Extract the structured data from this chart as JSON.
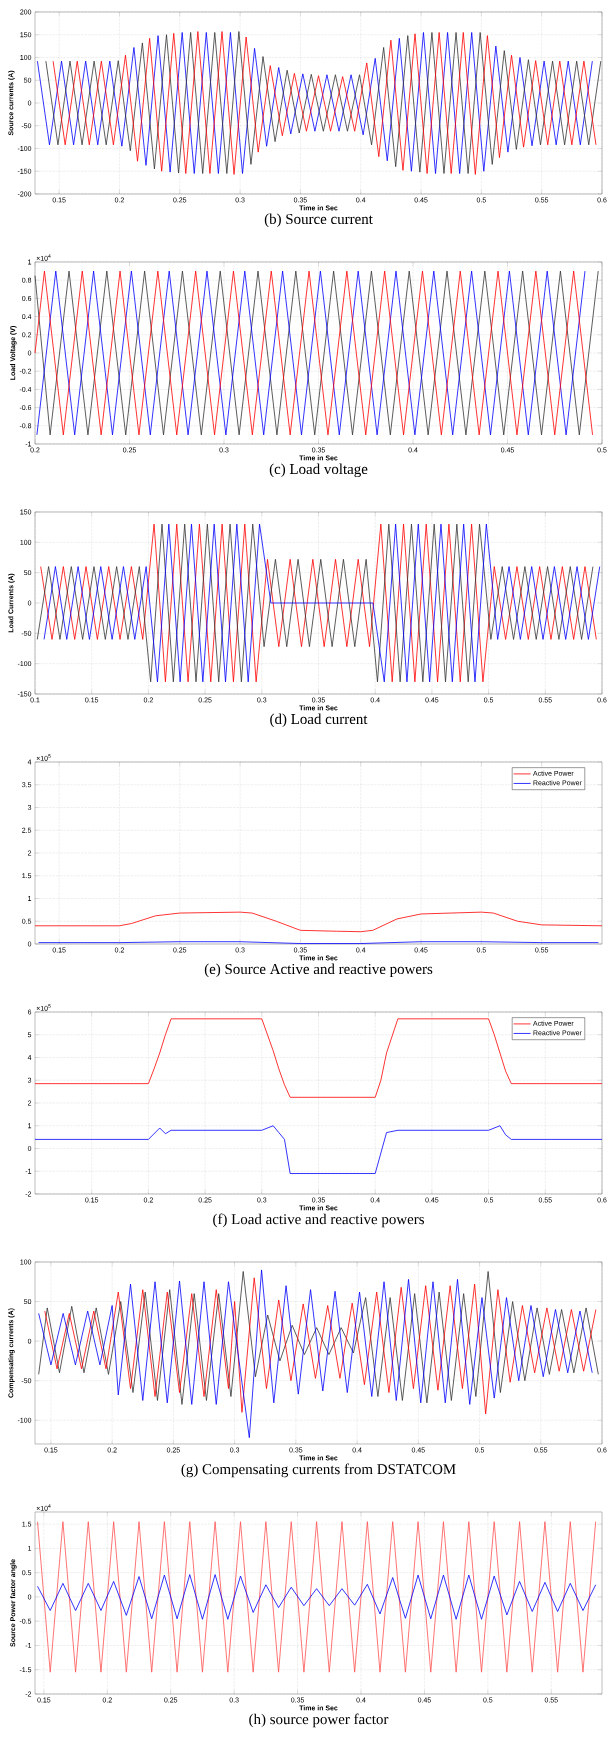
{
  "chart_data": [
    {
      "type": "line",
      "title": "(b) Source current",
      "xlabel": "Time in Sec",
      "ylabel": "Source currents (A)",
      "xlim": [
        0.13,
        0.6
      ],
      "ylim": [
        -200,
        200
      ],
      "xticks": [
        0.15,
        0.2,
        0.25,
        0.3,
        0.35,
        0.4,
        0.45,
        0.5,
        0.55,
        0.6
      ],
      "yticks": [
        -200,
        -150,
        -100,
        -50,
        0,
        50,
        100,
        150,
        200
      ],
      "grid": true,
      "series": [
        {
          "color": "#0000ff",
          "x": [
            0.132,
            0.142,
            0.152,
            0.162,
            0.172,
            0.182,
            0.192,
            0.202,
            0.212,
            0.222,
            0.232,
            0.242,
            0.252,
            0.262,
            0.272,
            0.282,
            0.292,
            0.302,
            0.312,
            0.322,
            0.332,
            0.342,
            0.352,
            0.362,
            0.372,
            0.382,
            0.392,
            0.402,
            0.412,
            0.422,
            0.432,
            0.442,
            0.452,
            0.462,
            0.472,
            0.482,
            0.492,
            0.502,
            0.512,
            0.522,
            0.532,
            0.542,
            0.552,
            0.562,
            0.572,
            0.582,
            0.592
          ],
          "values": [
            92,
            -92,
            92,
            -92,
            92,
            -92,
            92,
            -95,
            122,
            -137,
            148,
            -152,
            155,
            -155,
            155,
            -155,
            155,
            -155,
            120,
            -95,
            78,
            -68,
            64,
            -62,
            62,
            -62,
            62,
            -70,
            98,
            -127,
            142,
            -150,
            155,
            -155,
            155,
            -155,
            155,
            -150,
            125,
            -108,
            100,
            -94,
            92,
            -92,
            92,
            -92,
            92
          ]
        },
        {
          "color": "#333333",
          "x": [
            0.139,
            0.149,
            0.159,
            0.169,
            0.179,
            0.189,
            0.199,
            0.209,
            0.219,
            0.229,
            0.239,
            0.249,
            0.259,
            0.269,
            0.279,
            0.289,
            0.299,
            0.309,
            0.319,
            0.329,
            0.339,
            0.349,
            0.359,
            0.369,
            0.379,
            0.389,
            0.399,
            0.409,
            0.419,
            0.429,
            0.439,
            0.449,
            0.459,
            0.469,
            0.479,
            0.489,
            0.499,
            0.509,
            0.519,
            0.529,
            0.539,
            0.549,
            0.559,
            0.569,
            0.579,
            0.589,
            0.599
          ],
          "values": [
            92,
            -92,
            92,
            -92,
            92,
            -92,
            93,
            -105,
            132,
            -145,
            150,
            -154,
            155,
            -155,
            155,
            -155,
            157,
            -135,
            102,
            -85,
            72,
            -66,
            63,
            -62,
            62,
            -62,
            62,
            -92,
            122,
            -140,
            148,
            -152,
            155,
            -155,
            155,
            -155,
            155,
            -135,
            115,
            -102,
            95,
            -92,
            92,
            -92,
            92,
            -92,
            92
          ]
        },
        {
          "color": "#ff0000",
          "x": [
            0.145,
            0.155,
            0.165,
            0.175,
            0.185,
            0.195,
            0.205,
            0.215,
            0.225,
            0.235,
            0.245,
            0.255,
            0.265,
            0.275,
            0.285,
            0.295,
            0.305,
            0.315,
            0.325,
            0.335,
            0.345,
            0.355,
            0.365,
            0.375,
            0.385,
            0.395,
            0.405,
            0.415,
            0.425,
            0.435,
            0.445,
            0.455,
            0.465,
            0.475,
            0.485,
            0.495,
            0.505,
            0.515,
            0.525,
            0.535,
            0.545,
            0.555,
            0.565,
            0.575,
            0.585,
            0.595
          ],
          "values": [
            92,
            -92,
            92,
            -92,
            92,
            -92,
            105,
            -128,
            142,
            -150,
            153,
            -155,
            157,
            -155,
            157,
            -157,
            145,
            -108,
            82,
            -72,
            65,
            -62,
            60,
            -62,
            58,
            -62,
            88,
            -118,
            138,
            -148,
            152,
            -155,
            155,
            -155,
            155,
            -157,
            148,
            -120,
            105,
            -97,
            93,
            -92,
            92,
            -92,
            92,
            -92
          ]
        }
      ]
    },
    {
      "type": "line",
      "title": "(c) Load voltage",
      "xlabel": "Time in Sec",
      "ylabel": "Load Voltage (V)",
      "annotations": [
        "×10$^{4}$"
      ],
      "xlim": [
        0.2,
        0.5
      ],
      "ylim": [
        -1,
        1
      ],
      "xticks": [
        0.2,
        0.25,
        0.3,
        0.35,
        0.4,
        0.45,
        0.5
      ],
      "yticks": [
        -1,
        -0.8,
        -0.6,
        -0.4,
        -0.2,
        0,
        0.2,
        0.4,
        0.6,
        0.8,
        1
      ],
      "grid": true,
      "series": [
        {
          "color": "#333333",
          "x": [
            0.2,
            0.208,
            0.218,
            0.228,
            0.238,
            0.248,
            0.258,
            0.268,
            0.278,
            0.288,
            0.298,
            0.308,
            0.318,
            0.328,
            0.338,
            0.348,
            0.358,
            0.368,
            0.378,
            0.388,
            0.398,
            0.408,
            0.418,
            0.428,
            0.438,
            0.448,
            0.458,
            0.468,
            0.478,
            0.488,
            0.498
          ],
          "values": [
            0.85,
            -0.9,
            0.9,
            -0.9,
            0.9,
            -0.9,
            0.9,
            -0.9,
            0.9,
            -0.9,
            0.9,
            -0.9,
            0.9,
            -0.9,
            0.9,
            -0.9,
            0.9,
            -0.9,
            0.9,
            -0.9,
            0.9,
            -0.9,
            0.9,
            -0.9,
            0.9,
            -0.9,
            0.9,
            -0.9,
            0.9,
            -0.9,
            0.9
          ]
        },
        {
          "color": "#0000ff",
          "x": [
            0.201,
            0.211,
            0.221,
            0.231,
            0.241,
            0.251,
            0.261,
            0.271,
            0.281,
            0.291,
            0.301,
            0.311,
            0.321,
            0.331,
            0.341,
            0.351,
            0.361,
            0.371,
            0.381,
            0.391,
            0.401,
            0.411,
            0.421,
            0.431,
            0.441,
            0.451,
            0.461,
            0.471,
            0.481,
            0.491
          ],
          "values": [
            -0.9,
            0.9,
            -0.9,
            0.9,
            -0.9,
            0.9,
            -0.9,
            0.9,
            -0.9,
            0.9,
            -0.9,
            0.9,
            -0.9,
            0.9,
            -0.9,
            0.9,
            -0.9,
            0.9,
            -0.9,
            0.9,
            -0.9,
            0.9,
            -0.9,
            0.9,
            -0.9,
            0.9,
            -0.9,
            0.9,
            -0.9,
            0.9
          ]
        },
        {
          "color": "#ff0000",
          "x": [
            0.2,
            0.205,
            0.215,
            0.225,
            0.235,
            0.245,
            0.255,
            0.265,
            0.275,
            0.285,
            0.295,
            0.305,
            0.315,
            0.325,
            0.335,
            0.345,
            0.355,
            0.365,
            0.375,
            0.385,
            0.395,
            0.405,
            0.415,
            0.425,
            0.435,
            0.445,
            0.455,
            0.465,
            0.475,
            0.485,
            0.495
          ],
          "values": [
            0,
            0.9,
            -0.9,
            0.9,
            -0.9,
            0.9,
            -0.9,
            0.9,
            -0.9,
            0.9,
            -0.9,
            0.9,
            -0.9,
            0.9,
            -0.9,
            0.9,
            -0.9,
            0.9,
            -0.9,
            0.9,
            -0.9,
            0.9,
            -0.9,
            0.9,
            -0.9,
            0.9,
            -0.9,
            0.9,
            -0.9,
            0.9,
            -0.9
          ]
        }
      ]
    },
    {
      "type": "line",
      "title": "(d) Load current",
      "xlabel": "Time in Sec",
      "ylabel": "Load Currents (A)",
      "xlim": [
        0.1,
        0.6
      ],
      "ylim": [
        -150,
        150
      ],
      "xticks": [
        0.1,
        0.15,
        0.2,
        0.25,
        0.3,
        0.35,
        0.4,
        0.45,
        0.5,
        0.55,
        0.6
      ],
      "yticks": [
        -150,
        -100,
        -50,
        0,
        50,
        100,
        150
      ],
      "grid": true,
      "series": [
        {
          "color": "#ff0000",
          "x": [
            0.105,
            0.115,
            0.125,
            0.135,
            0.145,
            0.155,
            0.165,
            0.175,
            0.185,
            0.195,
            0.205,
            0.215,
            0.225,
            0.235,
            0.245,
            0.255,
            0.265,
            0.275,
            0.285,
            0.295,
            0.305,
            0.315,
            0.325,
            0.335,
            0.345,
            0.355,
            0.365,
            0.375,
            0.385,
            0.395,
            0.405,
            0.415,
            0.425,
            0.435,
            0.445,
            0.455,
            0.465,
            0.475,
            0.485,
            0.495,
            0.505,
            0.515,
            0.525,
            0.535,
            0.545,
            0.555,
            0.565,
            0.575,
            0.585,
            0.595
          ],
          "values": [
            60,
            -60,
            60,
            -60,
            60,
            -60,
            60,
            -60,
            60,
            -60,
            130,
            -130,
            130,
            -130,
            130,
            -130,
            130,
            -130,
            130,
            -130,
            72,
            -72,
            72,
            -72,
            72,
            -72,
            72,
            -72,
            72,
            -72,
            130,
            -130,
            130,
            -130,
            130,
            -130,
            130,
            -130,
            130,
            -130,
            60,
            -60,
            60,
            -60,
            60,
            -60,
            60,
            -60,
            60,
            -60
          ]
        },
        {
          "color": "#333333",
          "x": [
            0.102,
            0.112,
            0.122,
            0.132,
            0.142,
            0.152,
            0.162,
            0.172,
            0.182,
            0.192,
            0.202,
            0.212,
            0.222,
            0.232,
            0.242,
            0.252,
            0.262,
            0.272,
            0.282,
            0.292,
            0.302,
            0.312,
            0.322,
            0.332,
            0.342,
            0.352,
            0.362,
            0.372,
            0.382,
            0.392,
            0.402,
            0.412,
            0.422,
            0.432,
            0.442,
            0.452,
            0.462,
            0.472,
            0.482,
            0.492,
            0.502,
            0.512,
            0.522,
            0.532,
            0.542,
            0.552,
            0.562,
            0.572,
            0.582,
            0.592
          ],
          "values": [
            -60,
            60,
            -60,
            60,
            -60,
            60,
            -60,
            60,
            -60,
            60,
            -130,
            130,
            -130,
            130,
            -130,
            130,
            -130,
            130,
            -130,
            130,
            -72,
            72,
            -72,
            72,
            -72,
            72,
            -72,
            72,
            -72,
            72,
            -130,
            130,
            -130,
            130,
            -130,
            130,
            -130,
            130,
            -130,
            130,
            -60,
            60,
            -60,
            60,
            -60,
            60,
            -60,
            60,
            -60,
            60
          ]
        },
        {
          "color": "#0000ff",
          "x": [
            0.108,
            0.118,
            0.128,
            0.138,
            0.148,
            0.158,
            0.168,
            0.178,
            0.188,
            0.198,
            0.208,
            0.218,
            0.228,
            0.238,
            0.248,
            0.258,
            0.268,
            0.278,
            0.288,
            0.298,
            0.308,
            0.318,
            0.328,
            0.338,
            0.348,
            0.358,
            0.368,
            0.378,
            0.388,
            0.398,
            0.408,
            0.418,
            0.428,
            0.438,
            0.448,
            0.458,
            0.468,
            0.478,
            0.488,
            0.498,
            0.508,
            0.518,
            0.528,
            0.538,
            0.548,
            0.558,
            0.568,
            0.578,
            0.588,
            0.598
          ],
          "values": [
            -60,
            60,
            -60,
            60,
            -60,
            60,
            -60,
            60,
            -60,
            60,
            -130,
            130,
            -130,
            130,
            -130,
            130,
            -130,
            130,
            -130,
            130,
            0,
            0,
            0,
            0,
            0,
            0,
            0,
            0,
            0,
            0,
            -130,
            130,
            -130,
            130,
            -130,
            130,
            -130,
            130,
            -130,
            130,
            -60,
            60,
            -60,
            60,
            -60,
            60,
            -60,
            60,
            -60,
            60
          ]
        }
      ]
    },
    {
      "type": "line",
      "title": "(e) Source Active and reactive powers",
      "xlabel": "Time in Sec",
      "annotations": [
        "×10$^{5}$"
      ],
      "xlim": [
        0.13,
        0.6
      ],
      "ylim": [
        0,
        4
      ],
      "xticks": [
        0.15,
        0.2,
        0.25,
        0.3,
        0.35,
        0.4,
        0.45,
        0.5,
        0.55
      ],
      "yticks": [
        0,
        0.5,
        1,
        1.5,
        2,
        2.5,
        3,
        3.5,
        4
      ],
      "grid": true,
      "legend": "top right",
      "series": [
        {
          "name": "Active Power",
          "color": "#ff0000",
          "x": [
            0.13,
            0.2,
            0.21,
            0.23,
            0.25,
            0.3,
            0.31,
            0.33,
            0.35,
            0.38,
            0.4,
            0.41,
            0.43,
            0.45,
            0.5,
            0.51,
            0.53,
            0.55,
            0.6
          ],
          "values": [
            0.4,
            0.4,
            0.45,
            0.62,
            0.68,
            0.7,
            0.68,
            0.5,
            0.3,
            0.28,
            0.27,
            0.3,
            0.55,
            0.66,
            0.7,
            0.68,
            0.5,
            0.42,
            0.4
          ]
        },
        {
          "name": "Reactive Power",
          "color": "#0000ff",
          "x": [
            0.133,
            0.2,
            0.25,
            0.3,
            0.35,
            0.4,
            0.45,
            0.5,
            0.55,
            0.597
          ],
          "values": [
            0.03,
            0.03,
            0.05,
            0.05,
            0.01,
            0.01,
            0.05,
            0.05,
            0.03,
            0.03
          ]
        }
      ]
    },
    {
      "type": "line",
      "title": "(f) Load active and reactive powers",
      "xlabel": "Time in Sec",
      "annotations": [
        "×10$^{5}$"
      ],
      "xlim": [
        0.1,
        0.6
      ],
      "ylim": [
        -2,
        6
      ],
      "xticks": [
        0.15,
        0.2,
        0.25,
        0.3,
        0.35,
        0.4,
        0.45,
        0.5,
        0.55,
        0.6
      ],
      "yticks": [
        -2,
        -1,
        0,
        1,
        2,
        3,
        4,
        5,
        6
      ],
      "grid": true,
      "legend": "top right",
      "series": [
        {
          "name": "Active Power",
          "color": "#ff0000",
          "x": [
            0.1,
            0.2,
            0.205,
            0.21,
            0.215,
            0.22,
            0.3,
            0.305,
            0.31,
            0.315,
            0.32,
            0.325,
            0.4,
            0.405,
            0.41,
            0.42,
            0.5,
            0.505,
            0.51,
            0.515,
            0.52,
            0.6
          ],
          "values": [
            2.85,
            2.85,
            3.5,
            4.2,
            5.0,
            5.7,
            5.7,
            5.0,
            4.3,
            3.5,
            2.8,
            2.25,
            2.25,
            3.0,
            4.2,
            5.7,
            5.7,
            5.0,
            4.2,
            3.4,
            2.85,
            2.85
          ]
        },
        {
          "name": "Reactive Power",
          "color": "#0000ff",
          "x": [
            0.1,
            0.2,
            0.21,
            0.215,
            0.22,
            0.3,
            0.31,
            0.315,
            0.32,
            0.325,
            0.4,
            0.41,
            0.42,
            0.5,
            0.51,
            0.515,
            0.52,
            0.6
          ],
          "values": [
            0.4,
            0.4,
            0.9,
            0.65,
            0.8,
            0.8,
            1.0,
            0.7,
            0.4,
            -1.1,
            -1.1,
            0.7,
            0.8,
            0.8,
            1.0,
            0.6,
            0.4,
            0.4
          ]
        }
      ]
    },
    {
      "type": "line",
      "title": "(g) Compensating currents from DSTATCOM",
      "xlabel": "Time in Sec",
      "ylabel": "Compensating currents (A)",
      "xlim": [
        0.137,
        0.6
      ],
      "ylim": [
        -130,
        100
      ],
      "xticks": [
        0.15,
        0.2,
        0.25,
        0.3,
        0.35,
        0.4,
        0.45,
        0.5,
        0.55,
        0.6
      ],
      "yticks": [
        -100,
        -50,
        0,
        50,
        100
      ],
      "grid": true,
      "series": [
        {
          "color": "#333333",
          "x": [
            0.14,
            0.147,
            0.157,
            0.167,
            0.177,
            0.187,
            0.197,
            0.207,
            0.217,
            0.227,
            0.237,
            0.247,
            0.257,
            0.267,
            0.277,
            0.287,
            0.297,
            0.307,
            0.317,
            0.327,
            0.337,
            0.347,
            0.357,
            0.367,
            0.377,
            0.387,
            0.397,
            0.407,
            0.417,
            0.427,
            0.437,
            0.447,
            0.457,
            0.467,
            0.477,
            0.487,
            0.497,
            0.507,
            0.517,
            0.527,
            0.537,
            0.547,
            0.557,
            0.567,
            0.577,
            0.587,
            0.597
          ],
          "values": [
            -42,
            42,
            -40,
            44,
            -40,
            42,
            -42,
            50,
            -65,
            62,
            -75,
            65,
            -80,
            60,
            -75,
            60,
            -70,
            88,
            -45,
            33,
            -25,
            20,
            -17,
            17,
            -17,
            17,
            -15,
            55,
            -70,
            55,
            -75,
            60,
            -78,
            62,
            -75,
            60,
            -70,
            88,
            -65,
            50,
            -50,
            42,
            -42,
            40,
            -40,
            42,
            -42
          ]
        },
        {
          "color": "#ff0000",
          "x": [
            0.145,
            0.155,
            0.165,
            0.175,
            0.185,
            0.195,
            0.205,
            0.215,
            0.225,
            0.235,
            0.245,
            0.255,
            0.265,
            0.275,
            0.285,
            0.295,
            0.3,
            0.306,
            0.316,
            0.326,
            0.336,
            0.346,
            0.356,
            0.366,
            0.376,
            0.386,
            0.396,
            0.406,
            0.416,
            0.426,
            0.436,
            0.446,
            0.456,
            0.466,
            0.476,
            0.486,
            0.496,
            0.505,
            0.515,
            0.525,
            0.535,
            0.545,
            0.555,
            0.565,
            0.575,
            0.585,
            0.595
          ],
          "values": [
            38,
            -35,
            35,
            -35,
            38,
            -35,
            62,
            -60,
            65,
            -70,
            62,
            -65,
            60,
            -70,
            65,
            -60,
            50,
            -90,
            80,
            -60,
            52,
            -50,
            47,
            -47,
            45,
            -47,
            48,
            -55,
            62,
            -65,
            68,
            -60,
            70,
            -62,
            70,
            -60,
            72,
            -92,
            65,
            -52,
            45,
            -40,
            42,
            -38,
            40,
            -38,
            40
          ]
        },
        {
          "color": "#0000ff",
          "x": [
            0.14,
            0.15,
            0.16,
            0.17,
            0.18,
            0.19,
            0.2,
            0.205,
            0.215,
            0.225,
            0.235,
            0.245,
            0.255,
            0.265,
            0.275,
            0.285,
            0.295,
            0.312,
            0.322,
            0.332,
            0.342,
            0.352,
            0.362,
            0.372,
            0.382,
            0.392,
            0.402,
            0.412,
            0.422,
            0.432,
            0.442,
            0.452,
            0.462,
            0.472,
            0.482,
            0.492,
            0.502,
            0.512,
            0.522,
            0.532,
            0.542,
            0.552,
            0.562,
            0.572,
            0.582,
            0.592
          ],
          "values": [
            35,
            -30,
            35,
            -30,
            38,
            -30,
            45,
            -68,
            72,
            -75,
            75,
            -78,
            76,
            -80,
            75,
            -80,
            75,
            -122,
            90,
            -78,
            70,
            -67,
            65,
            -63,
            63,
            -65,
            62,
            -70,
            75,
            -75,
            78,
            -78,
            75,
            -78,
            78,
            -80,
            55,
            -72,
            55,
            -50,
            45,
            -45,
            40,
            -40,
            38,
            -40
          ]
        }
      ]
    },
    {
      "type": "line",
      "title": "(h) source power factor",
      "xlabel": "Time in Sec",
      "ylabel": "Source Power factor angle",
      "annotations": [
        "×10$^{4}$"
      ],
      "xlim": [
        0.143,
        0.59
      ],
      "ylim": [
        -2,
        1.75
      ],
      "xticks": [
        0.15,
        0.2,
        0.25,
        0.3,
        0.35,
        0.4,
        0.45,
        0.5,
        0.55
      ],
      "yticks": [
        -2,
        -1.5,
        -1,
        -0.5,
        0,
        0.5,
        1,
        1.5
      ],
      "grid": true,
      "series": [
        {
          "color": "#ff5050",
          "x": [
            0.145,
            0.155,
            0.165,
            0.175,
            0.185,
            0.195,
            0.205,
            0.215,
            0.225,
            0.235,
            0.245,
            0.255,
            0.265,
            0.275,
            0.285,
            0.295,
            0.305,
            0.315,
            0.325,
            0.335,
            0.345,
            0.355,
            0.365,
            0.375,
            0.385,
            0.395,
            0.405,
            0.415,
            0.425,
            0.435,
            0.445,
            0.455,
            0.465,
            0.475,
            0.485,
            0.495,
            0.505,
            0.515,
            0.525,
            0.535,
            0.545,
            0.555,
            0.565,
            0.575,
            0.585
          ],
          "values": [
            1.55,
            -1.55,
            1.55,
            -1.55,
            1.55,
            -1.55,
            1.55,
            -1.55,
            1.55,
            -1.55,
            1.55,
            -1.55,
            1.55,
            -1.55,
            1.55,
            -1.55,
            1.55,
            -1.55,
            1.55,
            -1.55,
            1.55,
            -1.55,
            1.55,
            -1.55,
            1.55,
            -1.55,
            1.55,
            -1.55,
            1.55,
            -1.55,
            1.55,
            -1.55,
            1.55,
            -1.55,
            1.55,
            -1.55,
            1.55,
            -1.55,
            1.55,
            -1.55,
            1.55,
            -1.55,
            1.55,
            -1.55,
            1.55
          ]
        },
        {
          "color": "#0000ff",
          "x": [
            0.145,
            0.155,
            0.165,
            0.175,
            0.185,
            0.195,
            0.205,
            0.215,
            0.225,
            0.235,
            0.245,
            0.255,
            0.265,
            0.275,
            0.285,
            0.295,
            0.305,
            0.315,
            0.325,
            0.335,
            0.345,
            0.355,
            0.365,
            0.375,
            0.385,
            0.395,
            0.405,
            0.415,
            0.425,
            0.435,
            0.445,
            0.455,
            0.465,
            0.475,
            0.485,
            0.495,
            0.505,
            0.515,
            0.525,
            0.535,
            0.545,
            0.555,
            0.565,
            0.575,
            0.585
          ],
          "values": [
            0.22,
            -0.28,
            0.28,
            -0.28,
            0.28,
            -0.28,
            0.32,
            -0.38,
            0.42,
            -0.45,
            0.45,
            -0.45,
            0.46,
            -0.46,
            0.46,
            -0.46,
            0.43,
            -0.32,
            0.25,
            -0.22,
            0.2,
            -0.18,
            0.17,
            -0.18,
            0.17,
            -0.17,
            0.26,
            -0.35,
            0.4,
            -0.44,
            0.45,
            -0.45,
            0.45,
            -0.46,
            0.45,
            -0.46,
            0.43,
            -0.37,
            0.32,
            -0.3,
            0.3,
            -0.3,
            0.28,
            -0.28,
            0.25
          ]
        }
      ]
    }
  ]
}
